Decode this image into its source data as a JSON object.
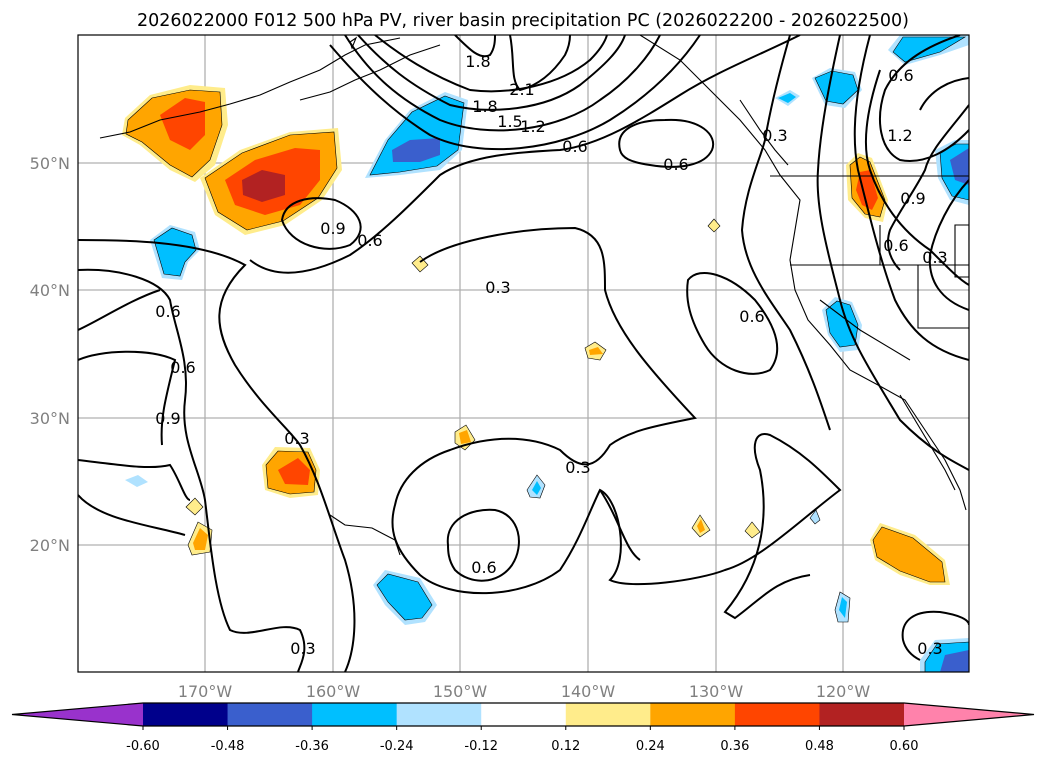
{
  "chart_data": {
    "type": "map",
    "title": "2026022000 F012 500 hPa PV, river basin precipitation PC (2026022200 - 2026022500)",
    "lon_ticks": [
      "170°W",
      "160°W",
      "150°W",
      "140°W",
      "130°W",
      "120°W"
    ],
    "lat_ticks": [
      "50°N",
      "40°N",
      "30°N",
      "20°N"
    ],
    "lon_range": [
      -180,
      -110
    ],
    "lat_range": [
      10,
      60
    ],
    "grid": true,
    "contour_labels": [
      "1.8",
      "2.1",
      "1.8",
      "1.5",
      "1.2",
      "0.6",
      "0.6",
      "0.9",
      "0.6",
      "0.3",
      "0.6",
      "0.6",
      "0.9",
      "0.3",
      "0.3",
      "0.6",
      "0.3",
      "0.6",
      "0.3",
      "1.2",
      "0.6",
      "0.9",
      "0.6",
      "0.3",
      "0.3"
    ],
    "colorbar": {
      "levels": [
        "-0.60",
        "-0.48",
        "-0.36",
        "-0.24",
        "-0.12",
        "0.12",
        "0.24",
        "0.36",
        "0.48",
        "0.60"
      ],
      "colors": [
        "#9932CC",
        "#00008B",
        "#3A5FCD",
        "#00BFFF",
        "#B0E2FF",
        "#FFFFFF",
        "#FFEC8B",
        "#FFA500",
        "#FF4500",
        "#B22222",
        "#FF82AB"
      ],
      "extend": "both"
    }
  }
}
